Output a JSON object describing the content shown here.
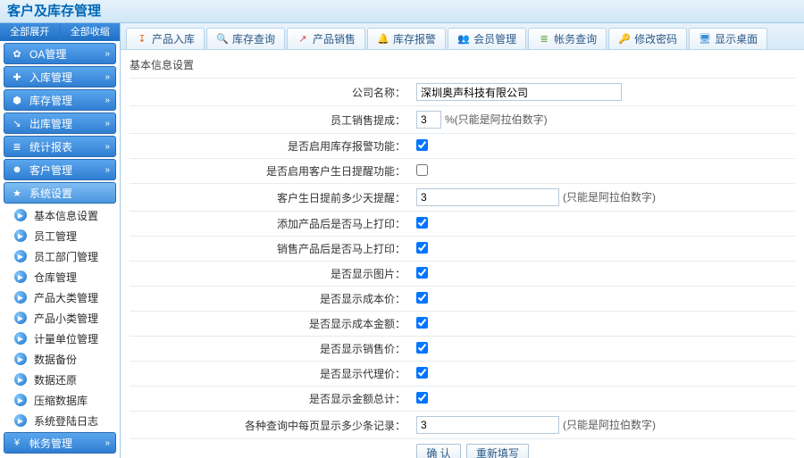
{
  "header": {
    "title": "客户及库存管理"
  },
  "sidebar": {
    "top": {
      "expand": "全部展开",
      "collapse": "全部收缩"
    },
    "groups": [
      {
        "icon": "✿",
        "label": "OA管理",
        "chev": "»"
      },
      {
        "icon": "✚",
        "label": "入库管理",
        "chev": "»"
      },
      {
        "icon": "⬢",
        "label": "库存管理",
        "chev": "»"
      },
      {
        "icon": "↘",
        "label": "出库管理",
        "chev": "»"
      },
      {
        "icon": "≣",
        "label": "统计报表",
        "chev": "»"
      },
      {
        "icon": "☻",
        "label": "客户管理",
        "chev": "»"
      },
      {
        "icon": "★",
        "label": "系统设置",
        "chev": "",
        "active": true
      }
    ],
    "subs": [
      {
        "label": "基本信息设置"
      },
      {
        "label": "员工管理"
      },
      {
        "label": "员工部门管理"
      },
      {
        "label": "仓库管理"
      },
      {
        "label": "产品大类管理"
      },
      {
        "label": "产品小类管理"
      },
      {
        "label": "计量单位管理"
      },
      {
        "label": "数据备份"
      },
      {
        "label": "数据还原"
      },
      {
        "label": "压缩数据库"
      },
      {
        "label": "系统登陆日志"
      }
    ],
    "footer": {
      "icon": "¥",
      "label": "帐务管理",
      "chev": "»"
    }
  },
  "tabs": [
    {
      "icon": "↧",
      "color": "#e06a2b",
      "label": "产品入库"
    },
    {
      "icon": "🔍",
      "color": "#e0a62b",
      "label": "库存查询"
    },
    {
      "icon": "↗",
      "color": "#d94848",
      "label": "产品销售"
    },
    {
      "icon": "🔔",
      "color": "#3a8ed6",
      "label": "库存报警"
    },
    {
      "icon": "👥",
      "color": "#6aa84f",
      "label": "会员管理"
    },
    {
      "icon": "≣",
      "color": "#6aa84f",
      "label": "帐务查询"
    },
    {
      "icon": "🔑",
      "color": "#c79a3a",
      "label": "修改密码"
    },
    {
      "icon": "🖥",
      "color": "#3a8ed6",
      "label": "显示桌面"
    }
  ],
  "section": {
    "title": "基本信息设置"
  },
  "form": {
    "rows": [
      {
        "label": "公司名称：",
        "type": "text",
        "cls": "long",
        "value": "深圳奥声科技有限公司"
      },
      {
        "label": "员工销售提成：",
        "type": "text",
        "cls": "short",
        "value": "3",
        "suffix": "%(只能是阿拉伯数字)"
      },
      {
        "label": "是否启用库存报警功能：",
        "type": "checkbox",
        "checked": true
      },
      {
        "label": "是否启用客户生日提醒功能：",
        "type": "checkbox",
        "checked": false
      },
      {
        "label": "客户生日提前多少天提醒：",
        "type": "text",
        "cls": "mid",
        "value": "3",
        "suffix": "(只能是阿拉伯数字)"
      },
      {
        "label": "添加产品后是否马上打印：",
        "type": "checkbox",
        "checked": true
      },
      {
        "label": "销售产品后是否马上打印：",
        "type": "checkbox",
        "checked": true
      },
      {
        "label": "是否显示图片：",
        "type": "checkbox",
        "checked": true
      },
      {
        "label": "是否显示成本价：",
        "type": "checkbox",
        "checked": true
      },
      {
        "label": "是否显示成本金额：",
        "type": "checkbox",
        "checked": true
      },
      {
        "label": "是否显示销售价：",
        "type": "checkbox",
        "checked": true
      },
      {
        "label": "是否显示代理价：",
        "type": "checkbox",
        "checked": true
      },
      {
        "label": "是否显示金额总计：",
        "type": "checkbox",
        "checked": true
      },
      {
        "label": "各种查询中每页显示多少条记录：",
        "type": "text",
        "cls": "mid",
        "value": "3",
        "suffix": "(只能是阿拉伯数字)"
      }
    ],
    "buttons": {
      "ok": "确 认",
      "reset": "重新填写"
    }
  },
  "colors": {
    "accent": "#1e6fc4",
    "header_text": "#0068b7",
    "border": "#9ec7e6"
  }
}
